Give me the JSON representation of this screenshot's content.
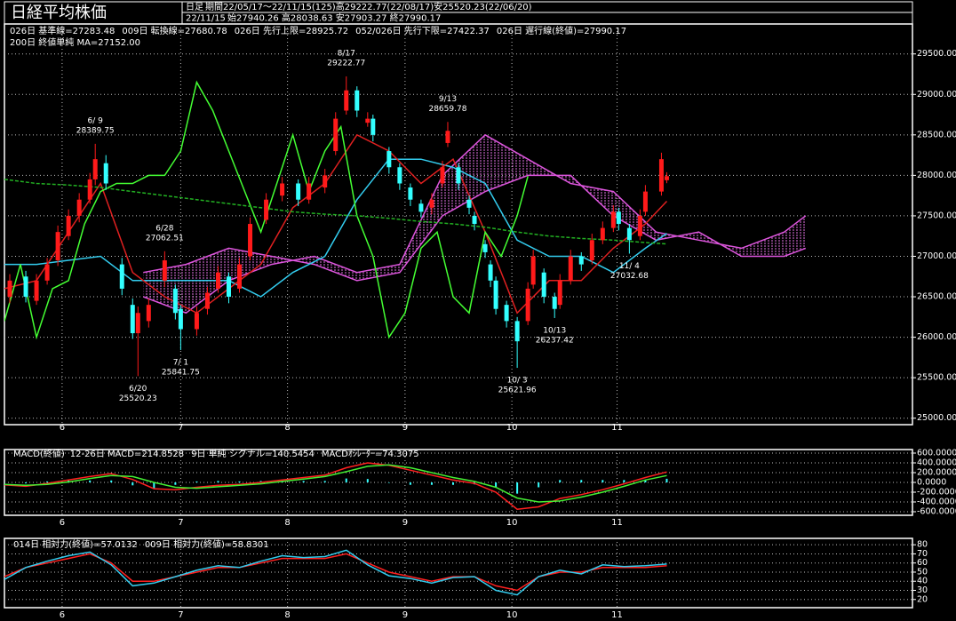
{
  "header": {
    "title": "日経平均株価",
    "period_type": "日足",
    "period": "期間22/05/17～22/11/15(125)高29222.77(22/08/17)安25520.23(22/06/20)",
    "date": "22/11/15",
    "ohlc": "始27940.26 高28038.63 安27903.27 終27990.17"
  },
  "chart_data": [
    {
      "type": "candlestick",
      "up_color": "#ff1a1a",
      "down_color": "#33ffff",
      "grid": true,
      "xlim": [
        0,
        170
      ],
      "xticks": [
        {
          "value": 10.8,
          "label": "6"
        },
        {
          "value": 33,
          "label": "7"
        },
        {
          "value": 53,
          "label": "8"
        },
        {
          "value": 75,
          "label": "9"
        },
        {
          "value": 95,
          "label": "10"
        },
        {
          "value": 114.7,
          "label": "11"
        }
      ],
      "ylim": [
        24920,
        29870
      ],
      "yticks": [
        {
          "value": 25000,
          "label": "25000.00"
        },
        {
          "value": 25500,
          "label": "25500.00"
        },
        {
          "value": 26000,
          "label": "26000.00"
        },
        {
          "value": 26500,
          "label": "26500.00"
        },
        {
          "value": 27000,
          "label": "27000.00"
        },
        {
          "value": 27500,
          "label": "27500.00"
        },
        {
          "value": 28000,
          "label": "28000.00"
        },
        {
          "value": 28500,
          "label": "28500.00"
        },
        {
          "value": 29000,
          "label": "29000.00"
        },
        {
          "value": 29500,
          "label": "29500.00"
        }
      ],
      "x": [
        1,
        4,
        6,
        8,
        10,
        12,
        14,
        16,
        17,
        19,
        22,
        24,
        25,
        27,
        30,
        32,
        33,
        36,
        38,
        40,
        42,
        44,
        46,
        49,
        52,
        55,
        57,
        60,
        62,
        64,
        66,
        68,
        69,
        72,
        74,
        76,
        78,
        80,
        82,
        83,
        85,
        87,
        88,
        90,
        91,
        92,
        94,
        96,
        98,
        99,
        101,
        103,
        104,
        106,
        108,
        110,
        112,
        114,
        115,
        117,
        119,
        120,
        123,
        124
      ],
      "open": [
        26500,
        26750,
        26450,
        26700,
        26950,
        27250,
        27500,
        27700,
        27950,
        28150,
        26900,
        26400,
        26050,
        26200,
        26700,
        26600,
        26350,
        26100,
        26350,
        26600,
        26750,
        26600,
        27000,
        27450,
        27750,
        27900,
        27700,
        27850,
        28300,
        28800,
        29050,
        28650,
        28700,
        28300,
        28100,
        27850,
        27650,
        27600,
        27900,
        28400,
        28100,
        27700,
        27500,
        27150,
        26900,
        26700,
        26400,
        26200,
        26200,
        26650,
        26800,
        26500,
        26400,
        26700,
        27000,
        26950,
        27200,
        27350,
        27550,
        27350,
        27250,
        27550,
        27800,
        27940.26
      ],
      "high": [
        26780,
        26820,
        26780,
        26980,
        27380,
        27580,
        27780,
        28030,
        28389.75,
        28250,
        26980,
        26480,
        26380,
        26480,
        27062.51,
        26650,
        26400,
        26380,
        26620,
        26880,
        26800,
        26980,
        27480,
        27780,
        27980,
        27950,
        27980,
        28080,
        28780,
        29222.77,
        29100,
        28780,
        28750,
        28350,
        28150,
        27900,
        27700,
        27780,
        28180,
        28659.78,
        28150,
        27750,
        27550,
        27200,
        26950,
        26750,
        26450,
        26250,
        26680,
        27080,
        26850,
        26550,
        26780,
        27080,
        27050,
        27280,
        27430,
        27630,
        27600,
        27400,
        27580,
        27880,
        28280,
        28038.63
      ],
      "low": [
        26420,
        26430,
        26400,
        26650,
        26880,
        27200,
        27420,
        27650,
        27880,
        27820,
        26520,
        25980,
        25520.23,
        26120,
        26620,
        26220,
        25841.75,
        26020,
        26280,
        26550,
        26420,
        26550,
        26950,
        27400,
        27680,
        27620,
        27650,
        27780,
        28250,
        28750,
        28720,
        28600,
        28420,
        28020,
        27820,
        27620,
        27480,
        27520,
        27850,
        28350,
        27820,
        27520,
        27320,
        26980,
        26620,
        26280,
        26120,
        25621.96,
        26150,
        26600,
        26420,
        26237.42,
        26350,
        26650,
        26820,
        26900,
        27150,
        27300,
        27320,
        27032.68,
        27200,
        27500,
        27750,
        27903.27
      ],
      "close": [
        26700,
        26500,
        26700,
        26900,
        27300,
        27500,
        27700,
        27950,
        28200,
        27900,
        26600,
        26050,
        26300,
        26400,
        26950,
        26300,
        26100,
        26300,
        26550,
        26800,
        26500,
        26900,
        27400,
        27700,
        27900,
        27700,
        27900,
        28000,
        28700,
        29050,
        28800,
        28700,
        28500,
        28100,
        27900,
        27700,
        27550,
        27700,
        28100,
        28550,
        27900,
        27600,
        27400,
        27050,
        26700,
        26350,
        26200,
        25950,
        26600,
        27000,
        26500,
        26350,
        26700,
        27000,
        26900,
        27200,
        27350,
        27550,
        27400,
        27200,
        27500,
        27800,
        28200,
        27990.17
      ],
      "series": [
        {
          "name": "026日 基準線=27283.48",
          "color": "#33ccee",
          "x": [
            0,
            6,
            12,
            18,
            24,
            30,
            36,
            42,
            48,
            54,
            60,
            66,
            72,
            78,
            84,
            90,
            96,
            102,
            108,
            114,
            120,
            124
          ],
          "values": [
            26900,
            26900,
            26950,
            27000,
            26700,
            26700,
            26700,
            26700,
            26500,
            26800,
            27000,
            27700,
            28200,
            28200,
            28100,
            27900,
            27200,
            27000,
            27000,
            26800,
            27100,
            27283.48
          ]
        },
        {
          "name": "009日 転換線=27680.78",
          "color": "#e02020",
          "x": [
            0,
            6,
            12,
            18,
            24,
            30,
            36,
            42,
            48,
            54,
            60,
            66,
            72,
            78,
            84,
            90,
            96,
            102,
            108,
            114,
            120,
            124
          ],
          "values": [
            26600,
            26700,
            27300,
            27900,
            26800,
            26500,
            26300,
            26600,
            26900,
            27600,
            27900,
            28500,
            28300,
            27900,
            28200,
            27300,
            26300,
            26700,
            26700,
            27100,
            27400,
            27680.78
          ]
        },
        {
          "name": "026日 遅行線(終値)=27990.17",
          "color": "#44ff33",
          "x": [
            0,
            3,
            6,
            9,
            12,
            15,
            18,
            21,
            24,
            27,
            30,
            33,
            36,
            39,
            42,
            45,
            48,
            51,
            54,
            57,
            60,
            63,
            66,
            69,
            72,
            75,
            78,
            81,
            84,
            87,
            90,
            93,
            96,
            98
          ],
          "values": [
            26200,
            26900,
            26000,
            26600,
            26700,
            27400,
            27800,
            27900,
            27900,
            28000,
            28000,
            28300,
            29150,
            28800,
            28300,
            27800,
            27300,
            27900,
            28500,
            27800,
            28300,
            28600,
            27500,
            27000,
            26000,
            26300,
            27100,
            27300,
            26500,
            26300,
            27300,
            27000,
            27500,
            27990.17
          ]
        },
        {
          "name": "200日 終値単純 MA=27152.00",
          "color": "#22b022",
          "style": "dashed",
          "x": [
            0,
            6,
            12,
            18,
            24,
            30,
            36,
            42,
            48,
            54,
            60,
            66,
            72,
            78,
            84,
            90,
            96,
            102,
            108,
            114,
            120,
            124
          ],
          "values": [
            27950,
            27900,
            27880,
            27850,
            27800,
            27750,
            27700,
            27650,
            27600,
            27550,
            27520,
            27500,
            27470,
            27430,
            27400,
            27360,
            27300,
            27250,
            27220,
            27200,
            27170,
            27152
          ]
        }
      ],
      "cloud": {
        "x": [
          26,
          34,
          42,
          50,
          58,
          66,
          74,
          82,
          90,
          98,
          106,
          114,
          122,
          130,
          138,
          146,
          150
        ],
        "upper": {
          "name": "026日 先行上限=28925.72",
          "color": "#dd55dd",
          "values": [
            26500,
            26300,
            26700,
            26900,
            27000,
            26800,
            26900,
            28000,
            28500,
            28200,
            27900,
            27800,
            27300,
            27200,
            27100,
            27300,
            27500
          ]
        },
        "lower": {
          "name": "052/026日 先行下限=27422.37",
          "color": "#dd55dd",
          "values": [
            26800,
            26900,
            27100,
            27000,
            26900,
            26700,
            26800,
            27500,
            27800,
            28000,
            28000,
            27500,
            27200,
            27300,
            27000,
            27000,
            27100
          ]
        }
      },
      "annotations": [
        {
          "x": 17,
          "date": "6/ 9",
          "value": 28389.75,
          "position": "above"
        },
        {
          "x": 25,
          "date": "6/20",
          "value": 25520.23,
          "position": "below"
        },
        {
          "x": 30,
          "date": "6/28",
          "value": 27062.51,
          "position": "above"
        },
        {
          "x": 33,
          "date": "7/ 1",
          "value": 25841.75,
          "position": "below"
        },
        {
          "x": 64,
          "date": "8/17",
          "value": 29222.77,
          "position": "above"
        },
        {
          "x": 83,
          "date": "9/13",
          "value": 28659.78,
          "position": "above"
        },
        {
          "x": 96,
          "date": "10/ 3",
          "value": 25621.96,
          "position": "below"
        },
        {
          "x": 103,
          "date": "10/13",
          "value": 26237.42,
          "position": "below"
        },
        {
          "x": 117,
          "date": "11/ 4",
          "value": 27032.68,
          "position": "below"
        }
      ]
    },
    {
      "type": "macd",
      "title": "MACD(終値)",
      "grid": true,
      "xlim": [
        0,
        170
      ],
      "xticks": [
        {
          "value": 10.8,
          "label": "6"
        },
        {
          "value": 33,
          "label": "7"
        },
        {
          "value": 53,
          "label": "8"
        },
        {
          "value": 75,
          "label": "9"
        },
        {
          "value": 95,
          "label": "10"
        },
        {
          "value": 114.7,
          "label": "11"
        }
      ],
      "ylim": [
        -673,
        673
      ],
      "yticks": [
        {
          "value": -600,
          "label": "-600.0000"
        },
        {
          "value": -400,
          "label": "-400.0000"
        },
        {
          "value": -200,
          "label": "-200.0000"
        },
        {
          "value": 0,
          "label": "0.0000"
        },
        {
          "value": 200,
          "label": "200.0000"
        },
        {
          "value": 400,
          "label": "400.0000"
        },
        {
          "value": 600,
          "label": "600.0000"
        }
      ],
      "x": [
        0,
        4,
        8,
        12,
        16,
        20,
        24,
        28,
        32,
        36,
        40,
        44,
        48,
        52,
        56,
        60,
        64,
        68,
        72,
        76,
        80,
        84,
        88,
        92,
        96,
        100,
        104,
        108,
        112,
        116,
        120,
        124
      ],
      "series": [
        {
          "name": "12-26日 MACD=214.8528",
          "color": "#ff2020",
          "kind": "line",
          "values": [
            -50,
            -80,
            -20,
            50,
            120,
            180,
            60,
            -130,
            -150,
            -100,
            -60,
            -40,
            0,
            50,
            100,
            150,
            300,
            400,
            350,
            250,
            150,
            50,
            -20,
            -200,
            -550,
            -500,
            -330,
            -250,
            -150,
            -30,
            100,
            214.8528
          ]
        },
        {
          "name": "9日 単純 シグナル=140.5454",
          "color": "#44ee33",
          "kind": "line",
          "values": [
            -40,
            -60,
            -40,
            10,
            80,
            140,
            120,
            0,
            -100,
            -120,
            -90,
            -60,
            -30,
            20,
            70,
            120,
            220,
            330,
            360,
            300,
            200,
            100,
            20,
            -100,
            -320,
            -400,
            -380,
            -300,
            -200,
            -80,
            50,
            140.5454
          ]
        },
        {
          "name": "MACDｵｼﾚｰﾀｰ=74.3075",
          "color": "#33ffff",
          "kind": "bar",
          "values": [
            -10,
            -20,
            20,
            40,
            40,
            40,
            -60,
            -130,
            -50,
            20,
            30,
            20,
            30,
            30,
            30,
            30,
            80,
            70,
            -10,
            -50,
            -50,
            -50,
            -40,
            -100,
            -230,
            -100,
            50,
            50,
            50,
            50,
            50,
            74.3075
          ]
        }
      ]
    },
    {
      "type": "line",
      "grid": true,
      "xlim": [
        0,
        170
      ],
      "xticks": [
        {
          "value": 10.8,
          "label": "6"
        },
        {
          "value": 33,
          "label": "7"
        },
        {
          "value": 53,
          "label": "8"
        },
        {
          "value": 75,
          "label": "9"
        },
        {
          "value": 95,
          "label": "10"
        },
        {
          "value": 114.7,
          "label": "11"
        }
      ],
      "ylim": [
        11,
        87
      ],
      "yticks": [
        20,
        30,
        40,
        50,
        60,
        70,
        80
      ],
      "x": [
        0,
        4,
        8,
        12,
        16,
        20,
        24,
        28,
        32,
        36,
        40,
        44,
        48,
        52,
        56,
        60,
        64,
        68,
        72,
        76,
        80,
        84,
        88,
        92,
        96,
        100,
        104,
        108,
        112,
        116,
        120,
        124
      ],
      "series": [
        {
          "name": "014日 相対力(終値)=57.0132",
          "color": "#ff2020",
          "values": [
            45,
            55,
            60,
            65,
            70,
            60,
            40,
            40,
            45,
            50,
            55,
            55,
            60,
            65,
            65,
            65,
            70,
            60,
            50,
            45,
            40,
            45,
            45,
            35,
            30,
            45,
            50,
            50,
            55,
            55,
            55,
            57.0132
          ]
        },
        {
          "name": "009日 相対力(終値)=58.8301",
          "color": "#33ccee",
          "values": [
            42,
            55,
            62,
            68,
            72,
            58,
            35,
            38,
            45,
            52,
            57,
            55,
            62,
            68,
            66,
            67,
            74,
            58,
            46,
            43,
            38,
            44,
            45,
            30,
            25,
            45,
            52,
            48,
            58,
            56,
            57,
            58.8301
          ]
        }
      ]
    }
  ]
}
